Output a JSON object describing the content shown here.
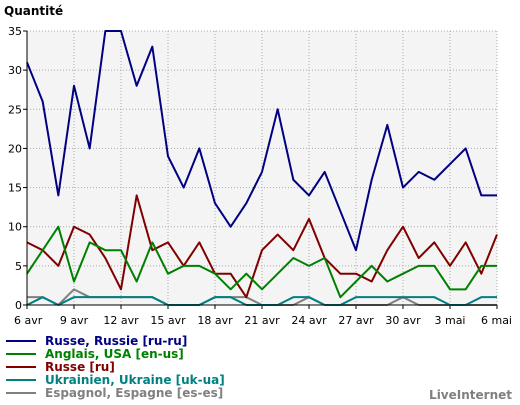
{
  "chart_data": {
    "type": "line",
    "ylabel": "Quantité",
    "ylim": [
      0,
      35
    ],
    "yticks": [
      0,
      5,
      10,
      15,
      20,
      25,
      30,
      35
    ],
    "x_tick_labels": [
      "6 avr",
      "9 avr",
      "12 avr",
      "15 avr",
      "18 avr",
      "21 avr",
      "24 avr",
      "27 avr",
      "30 avr",
      "3 mai",
      "6 mai"
    ],
    "x_tick_index": [
      0,
      3,
      6,
      9,
      12,
      15,
      18,
      21,
      24,
      27,
      30
    ],
    "grid": true,
    "legend_position": "bottom-left",
    "series": [
      {
        "name": "Russe, Russie [ru-ru]",
        "color": "#000080",
        "values": [
          31,
          26,
          14,
          28,
          20,
          35,
          35,
          28,
          33,
          19,
          15,
          20,
          13,
          10,
          13,
          17,
          25,
          16,
          14,
          17,
          12,
          7,
          16,
          23,
          15,
          17,
          16,
          18,
          20,
          14,
          14
        ]
      },
      {
        "name": "Anglais, USA [en-us]",
        "color": "#008000",
        "values": [
          4,
          7,
          10,
          3,
          8,
          7,
          7,
          3,
          8,
          4,
          5,
          5,
          4,
          2,
          4,
          2,
          4,
          6,
          5,
          6,
          1,
          3,
          5,
          3,
          4,
          5,
          5,
          2,
          2,
          5,
          5
        ]
      },
      {
        "name": "Russe [ru]",
        "color": "#800000",
        "values": [
          8,
          7,
          5,
          10,
          9,
          6,
          2,
          14,
          7,
          8,
          5,
          8,
          4,
          4,
          1,
          7,
          9,
          7,
          11,
          6,
          4,
          4,
          3,
          7,
          10,
          6,
          8,
          5,
          8,
          4,
          9
        ]
      },
      {
        "name": "Ukrainien, Ukraine [uk-ua]",
        "color": "#008080",
        "values": [
          0,
          1,
          0,
          1,
          1,
          1,
          1,
          1,
          1,
          0,
          0,
          0,
          1,
          1,
          0,
          0,
          0,
          1,
          1,
          0,
          0,
          1,
          1,
          1,
          1,
          1,
          1,
          0,
          0,
          1,
          1
        ]
      },
      {
        "name": "Espagnol, Espagne [es-es]",
        "color": "#808080",
        "values": [
          1,
          1,
          0,
          2,
          1,
          1,
          1,
          1,
          1,
          0,
          0,
          0,
          1,
          1,
          1,
          0,
          0,
          0,
          1,
          0,
          0,
          0,
          0,
          0,
          1,
          0,
          0,
          0,
          0,
          0,
          0
        ]
      }
    ]
  },
  "brand": "LiveInternet"
}
